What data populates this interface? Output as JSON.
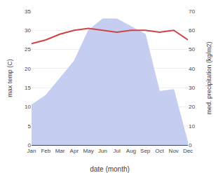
{
  "chart_data": {
    "type": "line",
    "categories": [
      "Jan",
      "Feb",
      "Mar",
      "Apr",
      "May",
      "Jun",
      "Jul",
      "Aug",
      "Sep",
      "Oct",
      "Nov",
      "Dec"
    ],
    "xlabel": "date (month)",
    "ylabel": "max temp (C)",
    "y2label": "med. precipitation (kg/m2)",
    "series": [
      {
        "type": "area",
        "axis": "y2",
        "color": "#c5cdf0",
        "values": [
          21,
          26,
          35,
          44,
          60,
          66,
          66,
          62,
          58,
          28,
          29,
          1
        ]
      },
      {
        "type": "line",
        "color": "#cc4444",
        "values": [
          26.5,
          27.5,
          29.0,
          30.0,
          30.5,
          30.0,
          29.5,
          30.0,
          30.0,
          29.5,
          30.0,
          27.5
        ]
      }
    ],
    "ylim": [
      0,
      35
    ],
    "yticks": [
      0,
      5,
      10,
      15,
      20,
      25,
      30,
      35
    ],
    "y2lim": [
      0,
      70
    ],
    "y2ticks": [
      0,
      10,
      20,
      30,
      40,
      50,
      60,
      70
    ],
    "grid": true
  }
}
